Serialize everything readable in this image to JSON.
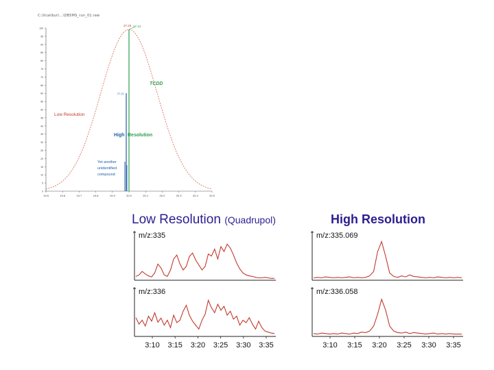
{
  "header_line": "C:\\Xcalibur\\...\\DB5MS_run_01.raw",
  "chart_data": [
    {
      "type": "line",
      "title": "",
      "x_tick_labels": [
        "19.5",
        "19.6",
        "19.7",
        "19.8",
        "19.9",
        "20.0",
        "20.1",
        "20.2",
        "20.3",
        "20.4",
        "20.5"
      ],
      "series": [
        {
          "name": "Low Resolution",
          "color": "#e08070",
          "shape": "gaussian",
          "center": 20.0,
          "sigma": 0.33
        }
      ],
      "peak_labels": [
        "27.23",
        "27.24"
      ],
      "annotations": {
        "tcdd": "TCDD",
        "low_res": "Low Resolution",
        "high_res": "High Resolution",
        "unknown": [
          "Yet another",
          "unidentified",
          "compound"
        ],
        "blue_small": "27.21"
      },
      "colors": {
        "low": "#c0392b",
        "tcdd": "#2e9e4f",
        "high": "#1f5fa6"
      }
    },
    {
      "type": "line",
      "title": "Low Resolution",
      "subtitle": "(Quadrupol)",
      "x_tick_labels": [
        "3:10",
        "3:15",
        "3:20",
        "3:25",
        "3:30",
        "3:35"
      ],
      "panels": [
        {
          "label": "m/z:335",
          "values": [
            5,
            8,
            15,
            10,
            6,
            4,
            12,
            30,
            22,
            8,
            5,
            18,
            40,
            48,
            30,
            18,
            25,
            45,
            52,
            38,
            28,
            18,
            25,
            50,
            46,
            60,
            40,
            65,
            55,
            70,
            62,
            48,
            32,
            20,
            12,
            8,
            6,
            5,
            3,
            2,
            2,
            3,
            2,
            1,
            1
          ]
        },
        {
          "label": "m/z:336",
          "values": [
            35,
            22,
            30,
            18,
            38,
            28,
            45,
            26,
            34,
            20,
            30,
            15,
            40,
            25,
            30,
            48,
            60,
            40,
            28,
            20,
            12,
            30,
            42,
            70,
            55,
            45,
            62,
            50,
            58,
            40,
            48,
            32,
            38,
            20,
            30,
            25,
            35,
            22,
            12,
            28,
            15,
            8,
            6,
            4,
            3
          ]
        }
      ]
    },
    {
      "type": "line",
      "title": "High Resolution",
      "x_tick_labels": [
        "3:10",
        "3:15",
        "3:20",
        "3:25",
        "3:30",
        "3:35"
      ],
      "panels": [
        {
          "label": "m/z:335.069",
          "values": [
            2,
            3,
            2,
            4,
            3,
            2,
            3,
            2,
            3,
            4,
            2,
            3,
            2,
            3,
            6,
            15,
            55,
            75,
            45,
            12,
            5,
            3,
            6,
            4,
            8,
            5,
            4,
            3,
            2,
            3,
            2,
            4,
            3,
            2,
            3,
            2,
            3,
            2
          ]
        },
        {
          "label": "m/z:336.058",
          "values": [
            3,
            2,
            4,
            3,
            2,
            3,
            2,
            4,
            3,
            2,
            4,
            3,
            6,
            5,
            8,
            18,
            42,
            72,
            50,
            18,
            8,
            5,
            4,
            6,
            3,
            5,
            4,
            3,
            2,
            3,
            4,
            2,
            3,
            2,
            3,
            2,
            2,
            2
          ]
        }
      ]
    }
  ]
}
